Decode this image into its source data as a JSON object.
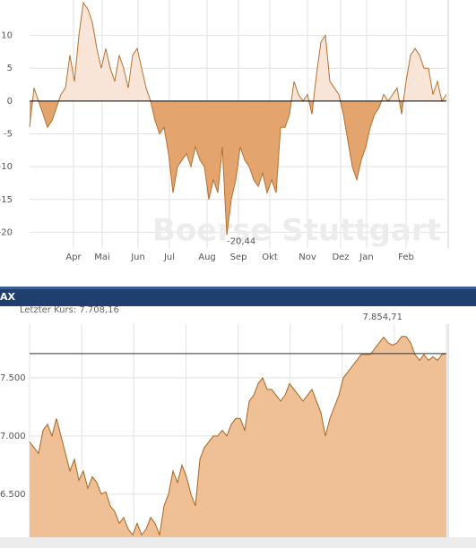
{
  "chart_data": [
    {
      "type": "area",
      "fill_positive": "#f9e5d7",
      "fill_negative": "#e3a46d",
      "color": "#b4702f",
      "grid": true,
      "watermark": "Boerse Stuttgart",
      "values": [
        -4,
        2,
        0,
        -2,
        -4,
        -3,
        -1,
        1,
        2,
        7,
        3,
        10,
        15,
        14,
        12,
        8,
        5,
        8,
        5,
        3,
        7,
        5,
        2,
        7,
        8,
        5,
        2,
        0,
        -3,
        -5,
        -4,
        -8,
        -14,
        -10,
        -9,
        -8,
        -10,
        -7,
        -9,
        -10,
        -15,
        -12,
        -14,
        -7,
        -20.44,
        -15,
        -12,
        -7,
        -9,
        -10,
        -12,
        -13,
        -11,
        -14,
        -12,
        -14,
        -4,
        -4,
        -2,
        3,
        1,
        0,
        1,
        -2,
        4,
        9,
        10,
        3,
        2,
        1,
        -2,
        -6,
        -10,
        -12,
        -9,
        -7,
        -4,
        -2,
        -1,
        1,
        0,
        1,
        2,
        -2,
        3,
        7,
        8,
        7,
        5,
        5,
        1,
        3,
        0,
        1
      ],
      "xlim": [
        0,
        93
      ],
      "ylim": [
        -22.4,
        15.4
      ],
      "yticks": [
        10,
        5,
        0,
        -5,
        -10,
        -15,
        -20
      ],
      "xticks": [
        {
          "value": 9.8,
          "label": "Apr"
        },
        {
          "value": 16.2,
          "label": "Mai"
        },
        {
          "value": 24.2,
          "label": "Jun"
        },
        {
          "value": 31.2,
          "label": "Jul"
        },
        {
          "value": 39.6,
          "label": "Aug"
        },
        {
          "value": 46.6,
          "label": "Sep"
        },
        {
          "value": 53.6,
          "label": "Okt"
        },
        {
          "value": 62,
          "label": "Nov"
        },
        {
          "value": 69.4,
          "label": "Dez"
        },
        {
          "value": 75.2,
          "label": "Jan"
        },
        {
          "value": 84,
          "label": "Feb"
        }
      ],
      "annotations": [
        {
          "text": "-20,44",
          "x": 44,
          "y": -20.44
        }
      ]
    },
    {
      "type": "area",
      "title": "AX",
      "fill": "#efc096",
      "color": "#a8641f",
      "grid": true,
      "ref_label": "Letzter Kurs: 7.708,16",
      "ref_value": 7708.16,
      "values": [
        6950,
        6900,
        6850,
        7050,
        7100,
        7000,
        7150,
        7000,
        6850,
        6700,
        6800,
        6620,
        6700,
        6550,
        6650,
        6600,
        6500,
        6520,
        6400,
        6350,
        6250,
        6300,
        6200,
        6150,
        6250,
        6150,
        6200,
        6300,
        6250,
        6150,
        6400,
        6500,
        6700,
        6600,
        6750,
        6650,
        6500,
        6400,
        6800,
        6900,
        6950,
        7000,
        7000,
        7050,
        7000,
        7100,
        7150,
        7150,
        7050,
        7300,
        7350,
        7450,
        7500,
        7400,
        7400,
        7350,
        7300,
        7350,
        7450,
        7400,
        7350,
        7300,
        7350,
        7400,
        7300,
        7200,
        7000,
        7150,
        7250,
        7350,
        7500,
        7550,
        7600,
        7650,
        7700,
        7700,
        7700,
        7750,
        7800,
        7850,
        7800,
        7780,
        7800,
        7855,
        7854.71,
        7800,
        7700,
        7650,
        7700,
        7650,
        7680,
        7650,
        7700,
        7708.16
      ],
      "xlim": [
        0,
        93
      ],
      "ylim": [
        6130,
        7961
      ],
      "yticks": [
        {
          "value": 7500,
          "label": "7.500"
        },
        {
          "value": 7000,
          "label": "7.000"
        },
        {
          "value": 6500,
          "label": "6.500"
        }
      ],
      "annotations": [
        {
          "text": "7.854,71",
          "x": 84,
          "y": 7854.71
        }
      ]
    }
  ]
}
